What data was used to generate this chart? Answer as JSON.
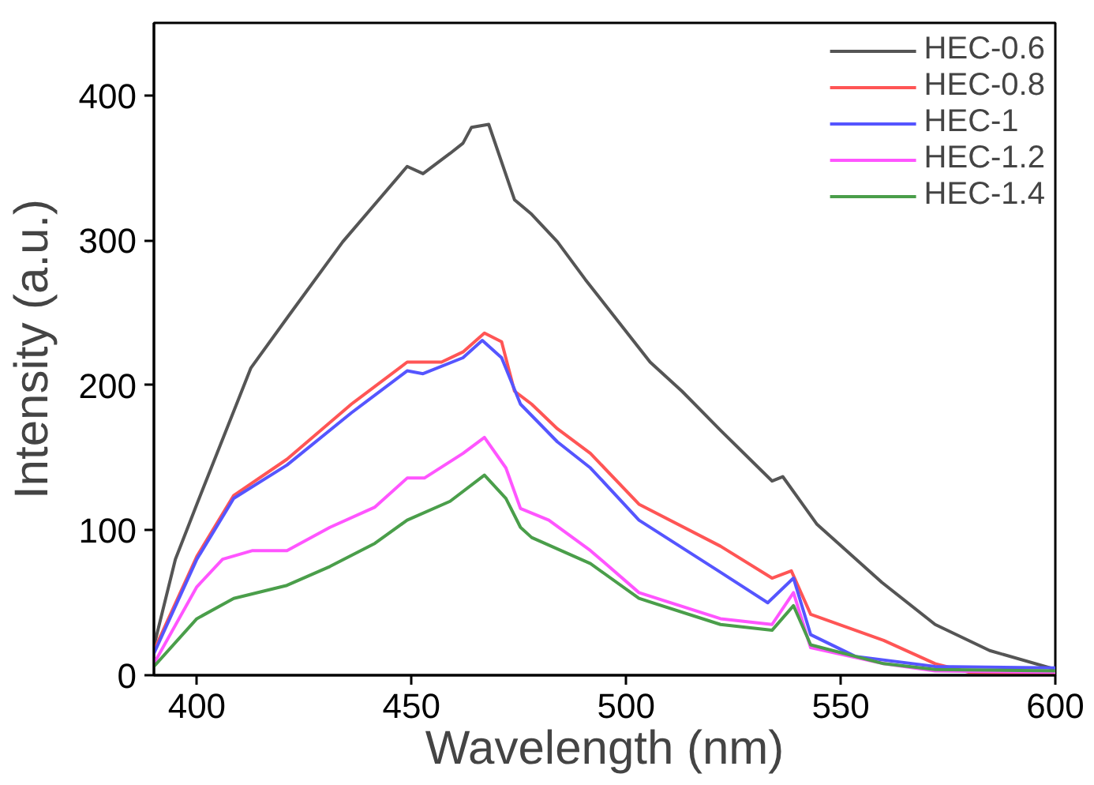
{
  "chart_data": {
    "type": "line",
    "xlabel": "Wavelength (nm)",
    "ylabel": "Intensity (a.u.)",
    "xlim": [
      390,
      600
    ],
    "ylim": [
      0,
      450
    ],
    "xticks": [
      400,
      450,
      500,
      550,
      600
    ],
    "yticks": [
      0,
      100,
      200,
      300,
      400
    ],
    "grid": false,
    "legend": "top right",
    "line_style": "solid",
    "marker": "none",
    "series": [
      {
        "name": "HEC-0.6",
        "color": "#555555",
        "x": [
          390,
          395,
          400,
          412.6,
          421.4,
          434,
          449,
          452.7,
          459,
          462,
          464,
          468,
          474,
          478,
          484,
          490.5,
          505.6,
          513,
          522,
          534,
          536.5,
          544.5,
          559.6,
          572,
          584.7,
          600
        ],
        "values": [
          20,
          80,
          118,
          212,
          248,
          299,
          351,
          346,
          360,
          367,
          378,
          380,
          328,
          318,
          299,
          273,
          216,
          196,
          169,
          134,
          137,
          104,
          64,
          35,
          17,
          4
        ]
      },
      {
        "name": "HEC-0.8",
        "color": "#ff5555",
        "x": [
          390,
          400,
          408.6,
          421,
          436,
          449,
          457,
          462,
          467,
          471,
          474,
          478,
          484,
          491.7,
          503,
          522,
          534,
          538.5,
          543,
          560,
          572,
          580,
          600
        ],
        "values": [
          17,
          82,
          124,
          149,
          187,
          216,
          216,
          223,
          236,
          230,
          196,
          187,
          170,
          153,
          118,
          89,
          67,
          72,
          42,
          24,
          8,
          2,
          1
        ]
      },
      {
        "name": "HEC-1",
        "color": "#5555ff",
        "x": [
          390,
          400,
          408.6,
          421,
          436,
          449,
          452.7,
          462,
          466.5,
          471,
          475.4,
          484,
          491.7,
          503,
          522,
          533,
          539,
          543,
          553.4,
          572,
          600
        ],
        "values": [
          15,
          80,
          122,
          145,
          181,
          210,
          208,
          219,
          231,
          219,
          187,
          161,
          143,
          107,
          71,
          50,
          67,
          28,
          13,
          6,
          5
        ]
      },
      {
        "name": "HEC-1.2",
        "color": "#ff55ff",
        "x": [
          390,
          400,
          406,
          413,
          421,
          431,
          441.5,
          449,
          453,
          462,
          467,
          472,
          475.4,
          482,
          491.7,
          503,
          522,
          534,
          539,
          543,
          560,
          572,
          600
        ],
        "values": [
          8,
          61,
          80,
          86,
          86,
          102,
          116,
          136,
          136,
          153,
          164,
          143,
          115,
          107,
          86,
          57,
          39,
          35,
          57,
          19,
          8,
          3,
          2
        ]
      },
      {
        "name": "HEC-1.4",
        "color": "#4a9e4a",
        "x": [
          390,
          400,
          408.6,
          421,
          431,
          441.5,
          449,
          459,
          467,
          472,
          475.4,
          478,
          491.7,
          503,
          522,
          534,
          539,
          543,
          560,
          572,
          600
        ],
        "values": [
          6,
          39,
          53,
          62,
          75,
          91,
          107,
          120,
          138,
          122,
          102,
          95,
          77,
          53,
          35,
          31,
          48,
          21,
          8,
          4,
          3
        ]
      }
    ]
  }
}
